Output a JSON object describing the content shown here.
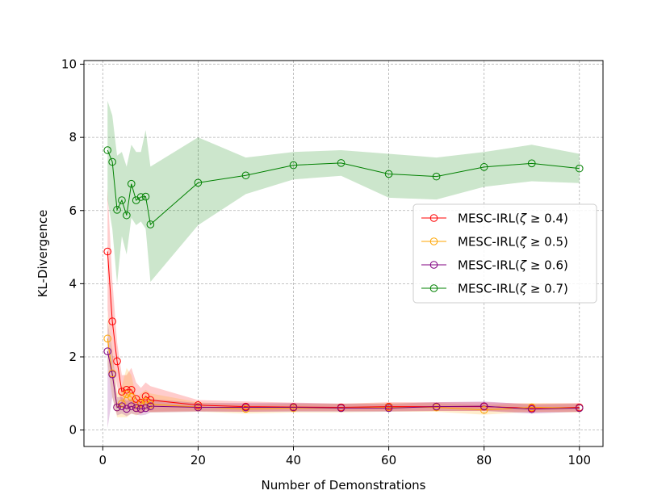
{
  "chart_data": {
    "type": "line",
    "title": "",
    "xlabel": "Number of Demonstrations",
    "ylabel": "KL-Divergence",
    "xlim": [
      -3.95,
      104.95
    ],
    "ylim": [
      -0.45,
      10.1
    ],
    "xticks": [
      0,
      20,
      40,
      60,
      80,
      100
    ],
    "yticks": [
      0,
      2,
      4,
      6,
      8,
      10
    ],
    "grid": true,
    "legend_position": "center-right",
    "x": [
      1,
      2,
      3,
      4,
      5,
      6,
      7,
      8,
      9,
      10,
      20,
      30,
      40,
      50,
      60,
      70,
      80,
      90,
      100
    ],
    "series": [
      {
        "name": "MESC-IRL(ζ ≥ 0.4)",
        "prefix": "MESC-IRL(",
        "symbol": "ζ",
        "suffix": " ≥ 0.4)",
        "color": "#ff0000",
        "values": [
          4.88,
          2.97,
          1.88,
          1.05,
          1.1,
          1.1,
          0.85,
          0.75,
          0.92,
          0.82,
          0.68,
          0.64,
          0.63,
          0.62,
          0.64,
          0.64,
          0.64,
          0.6,
          0.62
        ],
        "lower": [
          3.3,
          1.9,
          1.2,
          0.7,
          0.55,
          0.6,
          0.5,
          0.45,
          0.55,
          0.5,
          0.52,
          0.5,
          0.52,
          0.52,
          0.52,
          0.52,
          0.52,
          0.48,
          0.5
        ],
        "upper": [
          6.6,
          4.1,
          2.4,
          1.5,
          1.5,
          1.7,
          1.3,
          1.15,
          1.3,
          1.2,
          0.82,
          0.78,
          0.75,
          0.72,
          0.76,
          0.76,
          0.76,
          0.72,
          0.74
        ]
      },
      {
        "name": "MESC-IRL(ζ ≥ 0.5)",
        "prefix": "MESC-IRL(",
        "symbol": "ζ",
        "suffix": " ≥ 0.5)",
        "color": "#ffa500",
        "values": [
          2.5,
          1.55,
          0.62,
          0.72,
          0.98,
          0.9,
          0.6,
          0.72,
          0.78,
          0.7,
          0.63,
          0.58,
          0.6,
          0.6,
          0.62,
          0.62,
          0.55,
          0.62,
          0.6
        ],
        "lower": [
          1.8,
          0.9,
          0.35,
          0.35,
          0.35,
          0.45,
          0.4,
          0.45,
          0.5,
          0.48,
          0.5,
          0.45,
          0.48,
          0.48,
          0.5,
          0.5,
          0.42,
          0.5,
          0.48
        ],
        "upper": [
          3.2,
          2.2,
          1.0,
          1.2,
          1.7,
          1.5,
          0.9,
          1.0,
          1.1,
          1.0,
          0.76,
          0.7,
          0.72,
          0.72,
          0.74,
          0.74,
          0.68,
          0.74,
          0.72
        ]
      },
      {
        "name": "MESC-IRL(ζ ≥ 0.6)",
        "prefix": "MESC-IRL(",
        "symbol": "ζ",
        "suffix": " ≥ 0.6)",
        "color": "#800080",
        "values": [
          2.15,
          1.52,
          0.62,
          0.65,
          0.58,
          0.65,
          0.6,
          0.58,
          0.6,
          0.65,
          0.62,
          0.62,
          0.62,
          0.6,
          0.6,
          0.64,
          0.65,
          0.57,
          0.6
        ],
        "lower": [
          0.05,
          0.9,
          0.4,
          0.45,
          0.38,
          0.45,
          0.42,
          0.4,
          0.42,
          0.48,
          0.5,
          0.5,
          0.5,
          0.5,
          0.5,
          0.52,
          0.52,
          0.45,
          0.5
        ],
        "upper": [
          3.0,
          2.1,
          0.9,
          0.9,
          0.8,
          0.85,
          0.8,
          0.78,
          0.8,
          0.85,
          0.74,
          0.74,
          0.74,
          0.72,
          0.72,
          0.76,
          0.78,
          0.7,
          0.72
        ]
      },
      {
        "name": "MESC-IRL(ζ ≥ 0.7)",
        "prefix": "MESC-IRL(",
        "symbol": "ζ",
        "suffix": " ≥ 0.7)",
        "color": "#008000",
        "values": [
          7.65,
          7.33,
          6.02,
          6.28,
          5.87,
          6.73,
          6.28,
          6.37,
          6.38,
          5.62,
          6.76,
          6.96,
          7.24,
          7.3,
          7.0,
          6.93,
          7.19,
          7.29,
          7.15
        ],
        "lower": [
          6.3,
          5.5,
          4.0,
          5.3,
          4.8,
          5.8,
          5.6,
          5.7,
          5.5,
          4.05,
          5.6,
          6.45,
          6.85,
          6.95,
          6.35,
          6.3,
          6.65,
          6.8,
          6.75
        ],
        "upper": [
          9.0,
          8.6,
          7.5,
          7.6,
          7.2,
          7.8,
          7.6,
          7.6,
          8.2,
          7.2,
          8.0,
          7.45,
          7.6,
          7.65,
          7.55,
          7.45,
          7.6,
          7.8,
          7.55
        ]
      }
    ]
  }
}
